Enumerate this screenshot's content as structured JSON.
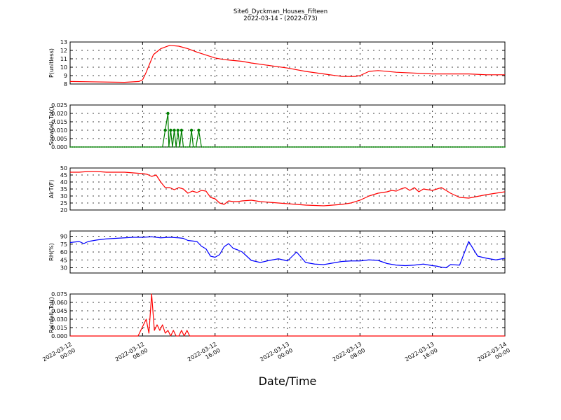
{
  "figure": {
    "title": "Site6_Dyckman_Houses_Fifteen",
    "subtitle": "2022-03-14 - (2022-073)",
    "xlabel": "Date/Time",
    "x_tick_labels": [
      [
        "2022-03-12",
        "00:00"
      ],
      [
        "2022-03-12",
        "08:00"
      ],
      [
        "2022-03-12",
        "16:00"
      ],
      [
        "2022-03-13",
        "00:00"
      ],
      [
        "2022-03-13",
        "08:00"
      ],
      [
        "2022-03-13",
        "16:00"
      ],
      [
        "2022-03-14",
        "00:00"
      ]
    ]
  },
  "chart_data": [
    {
      "type": "line",
      "ylabel": "P(unitless)",
      "color": "#ff0000",
      "ylim": [
        8,
        13
      ],
      "yticks": [
        "8",
        "9",
        "10",
        "11",
        "12",
        "13"
      ],
      "grid": true,
      "markers": false,
      "x": [
        0,
        6,
        7.6,
        8,
        8.4,
        9.2,
        10,
        11,
        12,
        13,
        14,
        16,
        17,
        18,
        19,
        20,
        22,
        24,
        26,
        28,
        30,
        31.5,
        32,
        33,
        34,
        36,
        40,
        44,
        46,
        47,
        48
      ],
      "values": [
        8.3,
        8.2,
        8.3,
        8.5,
        9.4,
        11.5,
        12.2,
        12.6,
        12.5,
        12.2,
        11.8,
        11.1,
        10.9,
        10.8,
        10.7,
        10.5,
        10.2,
        9.9,
        9.5,
        9.2,
        8.9,
        8.9,
        9.0,
        9.5,
        9.6,
        9.4,
        9.2,
        9.2,
        9.1,
        9.1,
        9.1
      ]
    },
    {
      "type": "line",
      "ylabel": "Snowfall_Tot()",
      "color": "#007f00",
      "ylim": [
        0,
        0.025
      ],
      "yticks": [
        "0.000",
        "0.005",
        "0.010",
        "0.015",
        "0.020",
        "0.025"
      ],
      "grid": true,
      "markers": true,
      "x": [
        0,
        10.2,
        10.5,
        10.8,
        10.9,
        11.1,
        11.3,
        11.5,
        11.7,
        11.9,
        12.1,
        12.3,
        12.5,
        12.6,
        13.2,
        13.4,
        13.6,
        13.9,
        14.2,
        14.5,
        14.8,
        48
      ],
      "values": [
        0,
        0,
        0.01,
        0.02,
        0,
        0.01,
        0,
        0.01,
        0,
        0.01,
        0,
        0.01,
        0,
        0,
        0,
        0.01,
        0,
        0,
        0.01,
        0,
        0,
        0
      ]
    },
    {
      "type": "line",
      "ylabel": "AirT(F)",
      "color": "#ff0000",
      "ylim": [
        20,
        50
      ],
      "yticks": [
        "20",
        "25",
        "30",
        "35",
        "40",
        "45",
        "50"
      ],
      "grid": true,
      "markers": false,
      "x": [
        0,
        1,
        2,
        3,
        4,
        5,
        6,
        7,
        8,
        8.5,
        9,
        9.5,
        10,
        10.5,
        11,
        11.5,
        12,
        12.5,
        13,
        13.5,
        14,
        14.5,
        15,
        15.5,
        16,
        16.5,
        17,
        17.5,
        18,
        18.5,
        19,
        20,
        21,
        22,
        23,
        24,
        26,
        28,
        30,
        31,
        32,
        33,
        34,
        35,
        35.5,
        36,
        36.5,
        37,
        37.5,
        38,
        38.5,
        39,
        40,
        41,
        42,
        43,
        44,
        46,
        48
      ],
      "values": [
        47,
        47,
        47.5,
        47.5,
        47,
        47,
        47,
        46.5,
        46,
        45.5,
        44,
        45,
        40,
        36,
        36,
        34.5,
        36,
        35,
        32,
        33.5,
        32.5,
        34,
        33.5,
        29,
        28,
        25,
        24,
        26.5,
        26,
        26,
        26.5,
        27,
        26,
        25.5,
        25,
        24.5,
        23.5,
        23,
        24,
        25,
        27,
        30,
        32,
        33,
        34,
        33.5,
        35,
        36,
        34,
        36,
        33,
        35,
        34,
        36,
        32,
        29,
        28.5,
        31,
        33
      ]
    },
    {
      "type": "line",
      "ylabel": "RH(%)",
      "color": "#0000ff",
      "ylim": [
        20,
        100
      ],
      "yticks": [
        "30",
        "45",
        "60",
        "75",
        "90"
      ],
      "grid": true,
      "markers": false,
      "x": [
        0,
        1,
        1.5,
        2,
        3,
        4,
        5,
        6,
        7,
        8,
        9,
        10,
        11,
        12,
        12.5,
        13,
        14,
        14.5,
        15,
        15.5,
        16,
        16.5,
        17,
        17.5,
        18,
        18.5,
        19,
        20,
        21,
        22,
        23,
        24,
        25,
        26,
        27,
        28,
        30,
        31,
        32,
        33,
        34,
        35,
        36,
        37,
        38,
        39,
        40,
        40.5,
        41,
        41.5,
        42,
        43,
        44,
        45,
        46,
        47,
        48
      ],
      "values": [
        78,
        80,
        76,
        80,
        83,
        85,
        86,
        87,
        88,
        88,
        89,
        87,
        88,
        87,
        86,
        82,
        80,
        71,
        66,
        52,
        50,
        55,
        70,
        76,
        67,
        64,
        60,
        44,
        40,
        44,
        47,
        43,
        60,
        40,
        37,
        36,
        42,
        43,
        43,
        45,
        44,
        38,
        35,
        34,
        35,
        37,
        34,
        33,
        31,
        30,
        36,
        35,
        80,
        52,
        48,
        45,
        48
      ]
    },
    {
      "type": "line",
      "ylabel": "Rainfall_Tot()",
      "color": "#ff0000",
      "ylim": [
        0,
        0.075
      ],
      "yticks": [
        "0.000",
        "0.015",
        "0.030",
        "0.045",
        "0.060",
        "0.075"
      ],
      "grid": true,
      "markers": false,
      "x": [
        0,
        7.5,
        7.8,
        8.1,
        8.4,
        8.7,
        9,
        9.3,
        9.6,
        9.9,
        10.2,
        10.5,
        10.8,
        11.1,
        11.4,
        11.7,
        12,
        12.3,
        12.6,
        12.9,
        13.2,
        13.5,
        13.8,
        14.1,
        48
      ],
      "values": [
        0,
        0,
        0.01,
        0.02,
        0.03,
        0.005,
        0.075,
        0.01,
        0.02,
        0.01,
        0.02,
        0.005,
        0.01,
        0,
        0.01,
        0,
        0,
        0.01,
        0,
        0.01,
        0,
        0,
        0,
        0,
        0
      ]
    }
  ]
}
